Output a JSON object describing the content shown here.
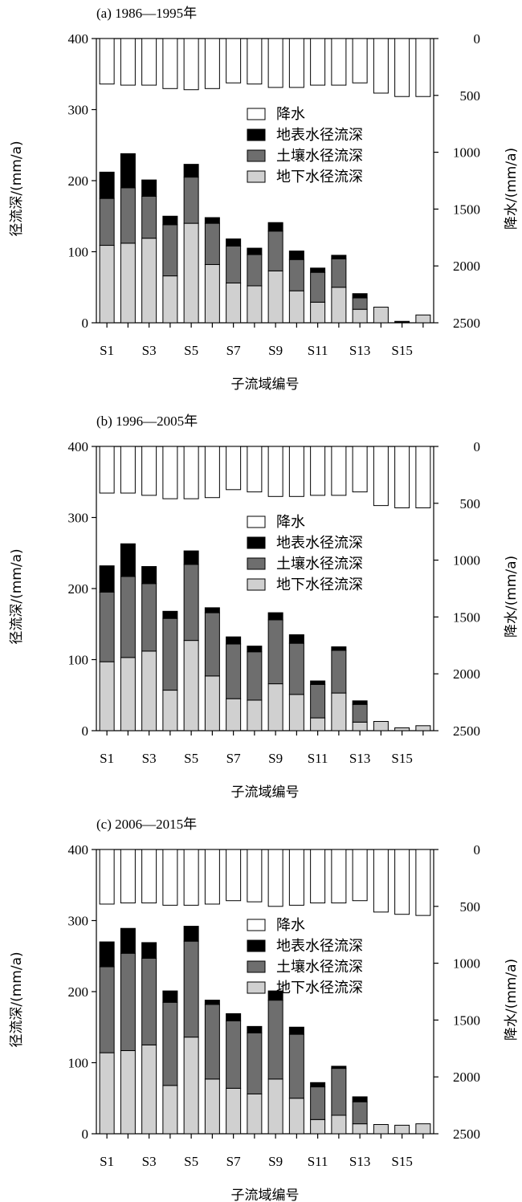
{
  "chart_data": [
    {
      "type": "bar",
      "title": "(a) 1986—1995年",
      "xlabel": "子流域编号",
      "ylabel": "径流深/(mm/a)",
      "y2label": "降水/(mm/a)",
      "ylim": [
        0,
        400
      ],
      "y2lim": [
        0,
        2500
      ],
      "yticks": [
        "0",
        "100",
        "200",
        "300",
        "400"
      ],
      "y2ticks": [
        "0",
        "500",
        "1000",
        "1500",
        "2000",
        "2500"
      ],
      "categories": [
        "S1",
        "S2",
        "S3",
        "S4",
        "S5",
        "S6",
        "S7",
        "S8",
        "S9",
        "S10",
        "S11",
        "S12",
        "S13",
        "S14",
        "S15",
        "S16"
      ],
      "xtick_labels": [
        "S1",
        "",
        "S3",
        "",
        "S5",
        "",
        "S7",
        "",
        "S9",
        "",
        "S11",
        "",
        "S13",
        "",
        "S15",
        ""
      ],
      "legend": [
        "降水",
        "地表水径流深",
        "土壤水径流深",
        "地下水径流深"
      ],
      "legend_position": "upper-right",
      "series": [
        {
          "name": "地下水径流深",
          "color": "#d0d0d0",
          "values": [
            109,
            112,
            119,
            66,
            140,
            82,
            56,
            52,
            73,
            45,
            29,
            50,
            19,
            22,
            0,
            11
          ]
        },
        {
          "name": "土壤水径流深",
          "color": "#6e6e6e",
          "values": [
            66,
            78,
            59,
            72,
            65,
            58,
            52,
            44,
            56,
            44,
            42,
            40,
            16,
            0,
            0,
            0
          ]
        },
        {
          "name": "地表水径流深",
          "color": "#000000",
          "values": [
            37,
            48,
            23,
            12,
            18,
            8,
            10,
            9,
            12,
            12,
            6,
            5,
            6,
            0,
            2,
            0
          ]
        },
        {
          "name": "降水",
          "color": "#ffffff",
          "axis": "right",
          "values": [
            400,
            410,
            410,
            440,
            450,
            440,
            390,
            400,
            430,
            430,
            410,
            410,
            390,
            480,
            510,
            510
          ]
        }
      ]
    },
    {
      "type": "bar",
      "title": "(b) 1996—2005年",
      "xlabel": "子流域编号",
      "ylabel": "径流深/(mm/a)",
      "y2label": "降水/(mm/a)",
      "ylim": [
        0,
        400
      ],
      "y2lim": [
        0,
        2500
      ],
      "yticks": [
        "0",
        "100",
        "200",
        "300",
        "400"
      ],
      "y2ticks": [
        "0",
        "500",
        "1000",
        "1500",
        "2000",
        "2500"
      ],
      "categories": [
        "S1",
        "S2",
        "S3",
        "S4",
        "S5",
        "S6",
        "S7",
        "S8",
        "S9",
        "S10",
        "S11",
        "S12",
        "S13",
        "S14",
        "S15",
        "S16"
      ],
      "xtick_labels": [
        "S1",
        "",
        "S3",
        "",
        "S5",
        "",
        "S7",
        "",
        "S9",
        "",
        "S11",
        "",
        "S13",
        "",
        "S15",
        ""
      ],
      "legend": [
        "降水",
        "地表水径流深",
        "土壤水径流深",
        "地下水径流深"
      ],
      "legend_position": "upper-right",
      "series": [
        {
          "name": "地下水径流深",
          "color": "#d0d0d0",
          "values": [
            97,
            103,
            112,
            57,
            127,
            77,
            45,
            43,
            66,
            51,
            18,
            53,
            12,
            13,
            4,
            7
          ]
        },
        {
          "name": "土壤水径流深",
          "color": "#6e6e6e",
          "values": [
            98,
            114,
            95,
            101,
            107,
            89,
            77,
            68,
            90,
            72,
            47,
            60,
            25,
            0,
            0,
            0
          ]
        },
        {
          "name": "地表水径流深",
          "color": "#000000",
          "values": [
            37,
            46,
            24,
            10,
            19,
            7,
            10,
            8,
            10,
            12,
            5,
            5,
            5,
            0,
            0,
            0
          ]
        },
        {
          "name": "降水",
          "color": "#ffffff",
          "axis": "right",
          "values": [
            410,
            410,
            430,
            460,
            460,
            450,
            380,
            400,
            440,
            440,
            430,
            430,
            400,
            520,
            540,
            540
          ]
        }
      ]
    },
    {
      "type": "bar",
      "title": "(c) 2006—2015年",
      "xlabel": "子流域编号",
      "ylabel": "径流深/(mm/a)",
      "y2label": "降水/(mm/a)",
      "ylim": [
        0,
        400
      ],
      "y2lim": [
        0,
        2500
      ],
      "yticks": [
        "0",
        "100",
        "200",
        "300",
        "400"
      ],
      "y2ticks": [
        "0",
        "500",
        "1000",
        "1500",
        "2000",
        "2500"
      ],
      "categories": [
        "S1",
        "S2",
        "S3",
        "S4",
        "S5",
        "S6",
        "S7",
        "S8",
        "S9",
        "S10",
        "S11",
        "S12",
        "S13",
        "S14",
        "S15",
        "S16"
      ],
      "xtick_labels": [
        "S1",
        "",
        "S3",
        "",
        "S5",
        "",
        "S7",
        "",
        "S9",
        "",
        "S11",
        "",
        "S13",
        "",
        "S15",
        ""
      ],
      "legend": [
        "降水",
        "地表水径流深",
        "土壤水径流深",
        "地下水径流深"
      ],
      "legend_position": "upper-right",
      "series": [
        {
          "name": "地下水径流深",
          "color": "#d0d0d0",
          "values": [
            114,
            117,
            125,
            68,
            136,
            77,
            64,
            56,
            77,
            50,
            20,
            26,
            14,
            13,
            12,
            14
          ]
        },
        {
          "name": "土壤水径流深",
          "color": "#6e6e6e",
          "values": [
            121,
            137,
            122,
            117,
            135,
            105,
            95,
            86,
            111,
            90,
            46,
            66,
            31,
            0,
            0,
            0
          ]
        },
        {
          "name": "地表水径流深",
          "color": "#000000",
          "values": [
            35,
            35,
            22,
            16,
            21,
            6,
            10,
            9,
            13,
            10,
            6,
            3,
            7,
            0,
            0,
            0
          ]
        },
        {
          "name": "降水",
          "color": "#ffffff",
          "axis": "right",
          "values": [
            480,
            470,
            470,
            490,
            490,
            480,
            450,
            460,
            500,
            490,
            470,
            470,
            450,
            550,
            570,
            580
          ]
        }
      ]
    }
  ]
}
